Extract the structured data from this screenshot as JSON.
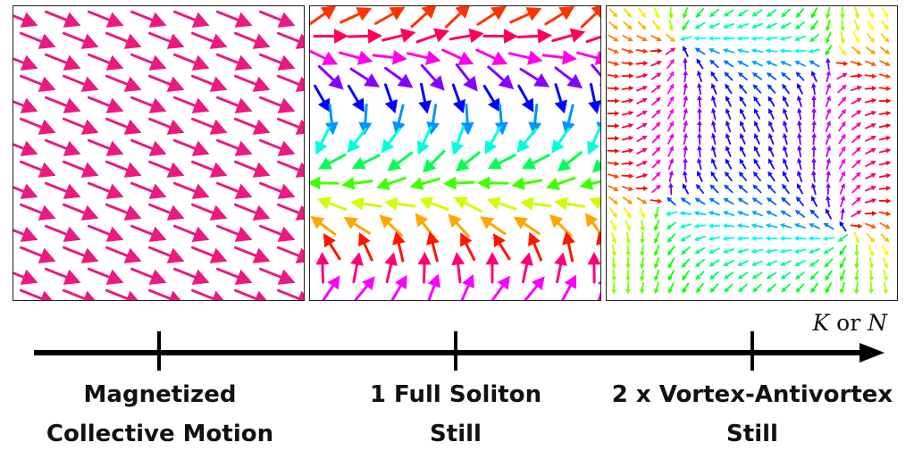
{
  "panels": [
    {
      "id": "collective",
      "pattern": "uniform",
      "color": "#ea1a7f"
    },
    {
      "id": "soliton",
      "pattern": "soliton"
    },
    {
      "id": "vortex",
      "pattern": "vortex-antivortex"
    }
  ],
  "axis": {
    "label_var1": "K",
    "label_or": "or",
    "label_var2": "N",
    "color": "#000000"
  },
  "captions": [
    {
      "line1": "Magnetized",
      "line2": "Collective Motion"
    },
    {
      "line1": "1 Full Soliton",
      "line2": "Still"
    },
    {
      "line1": "2 x Vortex-Antivortex",
      "line2": "Still"
    }
  ]
}
